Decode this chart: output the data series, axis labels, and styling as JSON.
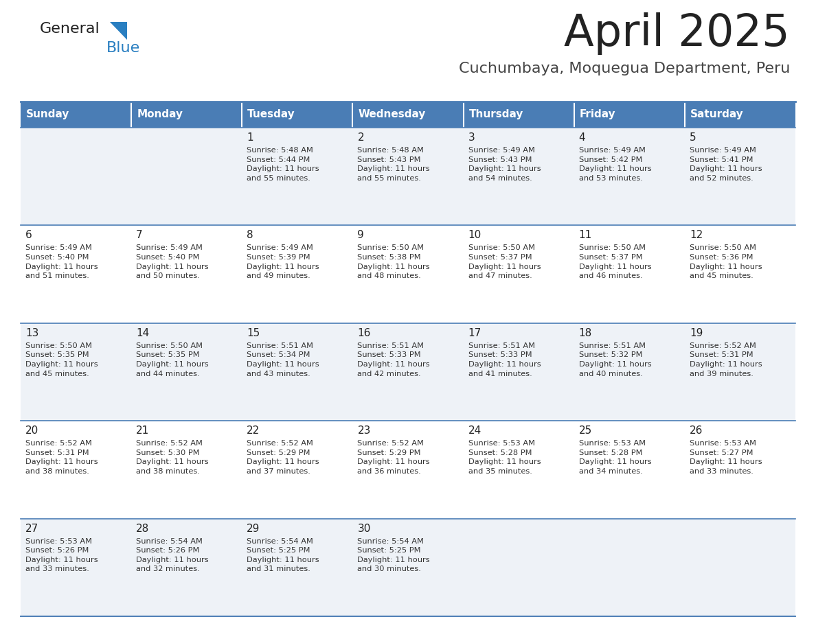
{
  "title": "April 2025",
  "subtitle": "Cuchumbaya, Moquegua Department, Peru",
  "header_color": "#4a7db5",
  "header_text_color": "#ffffff",
  "cell_bg_even": "#eef2f7",
  "cell_bg_odd": "#ffffff",
  "border_color": "#4a7db5",
  "text_color": "#222222",
  "info_color": "#333333",
  "logo_general_color": "#222222",
  "logo_blue_color": "#2a7fc1",
  "logo_triangle_color": "#2a7fc1",
  "days_of_week": [
    "Sunday",
    "Monday",
    "Tuesday",
    "Wednesday",
    "Thursday",
    "Friday",
    "Saturday"
  ],
  "calendar_data": [
    [
      "",
      "",
      "1\nSunrise: 5:48 AM\nSunset: 5:44 PM\nDaylight: 11 hours\nand 55 minutes.",
      "2\nSunrise: 5:48 AM\nSunset: 5:43 PM\nDaylight: 11 hours\nand 55 minutes.",
      "3\nSunrise: 5:49 AM\nSunset: 5:43 PM\nDaylight: 11 hours\nand 54 minutes.",
      "4\nSunrise: 5:49 AM\nSunset: 5:42 PM\nDaylight: 11 hours\nand 53 minutes.",
      "5\nSunrise: 5:49 AM\nSunset: 5:41 PM\nDaylight: 11 hours\nand 52 minutes."
    ],
    [
      "6\nSunrise: 5:49 AM\nSunset: 5:40 PM\nDaylight: 11 hours\nand 51 minutes.",
      "7\nSunrise: 5:49 AM\nSunset: 5:40 PM\nDaylight: 11 hours\nand 50 minutes.",
      "8\nSunrise: 5:49 AM\nSunset: 5:39 PM\nDaylight: 11 hours\nand 49 minutes.",
      "9\nSunrise: 5:50 AM\nSunset: 5:38 PM\nDaylight: 11 hours\nand 48 minutes.",
      "10\nSunrise: 5:50 AM\nSunset: 5:37 PM\nDaylight: 11 hours\nand 47 minutes.",
      "11\nSunrise: 5:50 AM\nSunset: 5:37 PM\nDaylight: 11 hours\nand 46 minutes.",
      "12\nSunrise: 5:50 AM\nSunset: 5:36 PM\nDaylight: 11 hours\nand 45 minutes."
    ],
    [
      "13\nSunrise: 5:50 AM\nSunset: 5:35 PM\nDaylight: 11 hours\nand 45 minutes.",
      "14\nSunrise: 5:50 AM\nSunset: 5:35 PM\nDaylight: 11 hours\nand 44 minutes.",
      "15\nSunrise: 5:51 AM\nSunset: 5:34 PM\nDaylight: 11 hours\nand 43 minutes.",
      "16\nSunrise: 5:51 AM\nSunset: 5:33 PM\nDaylight: 11 hours\nand 42 minutes.",
      "17\nSunrise: 5:51 AM\nSunset: 5:33 PM\nDaylight: 11 hours\nand 41 minutes.",
      "18\nSunrise: 5:51 AM\nSunset: 5:32 PM\nDaylight: 11 hours\nand 40 minutes.",
      "19\nSunrise: 5:52 AM\nSunset: 5:31 PM\nDaylight: 11 hours\nand 39 minutes."
    ],
    [
      "20\nSunrise: 5:52 AM\nSunset: 5:31 PM\nDaylight: 11 hours\nand 38 minutes.",
      "21\nSunrise: 5:52 AM\nSunset: 5:30 PM\nDaylight: 11 hours\nand 38 minutes.",
      "22\nSunrise: 5:52 AM\nSunset: 5:29 PM\nDaylight: 11 hours\nand 37 minutes.",
      "23\nSunrise: 5:52 AM\nSunset: 5:29 PM\nDaylight: 11 hours\nand 36 minutes.",
      "24\nSunrise: 5:53 AM\nSunset: 5:28 PM\nDaylight: 11 hours\nand 35 minutes.",
      "25\nSunrise: 5:53 AM\nSunset: 5:28 PM\nDaylight: 11 hours\nand 34 minutes.",
      "26\nSunrise: 5:53 AM\nSunset: 5:27 PM\nDaylight: 11 hours\nand 33 minutes."
    ],
    [
      "27\nSunrise: 5:53 AM\nSunset: 5:26 PM\nDaylight: 11 hours\nand 33 minutes.",
      "28\nSunrise: 5:54 AM\nSunset: 5:26 PM\nDaylight: 11 hours\nand 32 minutes.",
      "29\nSunrise: 5:54 AM\nSunset: 5:25 PM\nDaylight: 11 hours\nand 31 minutes.",
      "30\nSunrise: 5:54 AM\nSunset: 5:25 PM\nDaylight: 11 hours\nand 30 minutes.",
      "",
      "",
      ""
    ]
  ],
  "fig_width": 11.88,
  "fig_height": 9.18,
  "dpi": 100
}
